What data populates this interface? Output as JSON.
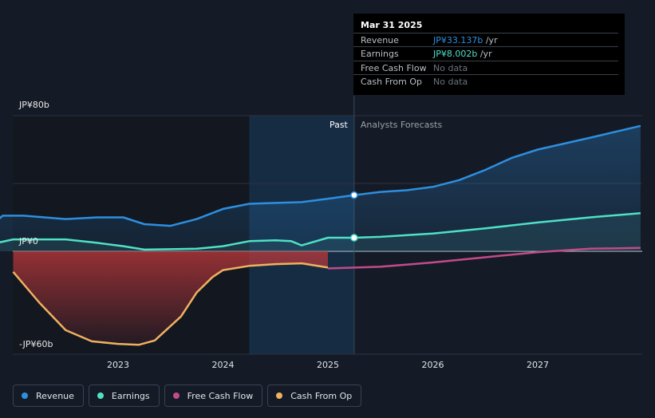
{
  "colors": {
    "revenue": "#2d8fe0",
    "earnings": "#4fe0c5",
    "fcf": "#c24b8a",
    "cfo": "#f0b060",
    "background": "#151b26"
  },
  "tooltip": {
    "date": "Mar 31 2025",
    "rows": [
      {
        "label": "Revenue",
        "value": "JP¥33.137b",
        "unit": " /yr",
        "color": "#2d8fe0"
      },
      {
        "label": "Earnings",
        "value": "JP¥8.002b",
        "unit": " /yr",
        "color": "#4fe0c5"
      },
      {
        "label": "Free Cash Flow",
        "value": "No data",
        "unit": "",
        "color": "#6b7280"
      },
      {
        "label": "Cash From Op",
        "value": "No data",
        "unit": "",
        "color": "#6b7280"
      }
    ]
  },
  "legend": [
    {
      "label": "Revenue",
      "color": "#2d8fe0"
    },
    {
      "label": "Earnings",
      "color": "#4fe0c5"
    },
    {
      "label": "Free Cash Flow",
      "color": "#c24b8a"
    },
    {
      "label": "Cash From Op",
      "color": "#f0b060"
    }
  ],
  "chart_data": {
    "type": "line",
    "past_label": "Past",
    "forecast_label": "Analysts Forecasts",
    "y_ticks": [
      {
        "value": 80,
        "label": "JP¥80b"
      },
      {
        "value": 0,
        "label": "JP¥0"
      },
      {
        "value": -60,
        "label": "-JP¥60b"
      }
    ],
    "x_ticks": [
      {
        "value": 2023,
        "label": "2023"
      },
      {
        "value": 2024,
        "label": "2024"
      },
      {
        "value": 2025,
        "label": "2025"
      },
      {
        "value": 2026,
        "label": "2026"
      },
      {
        "value": 2027,
        "label": "2027"
      }
    ],
    "xlim": [
      2021.75,
      2027.98
    ],
    "ylim": [
      -60,
      80
    ],
    "highlight_start": 2024.25,
    "divider": 2025.25,
    "series": [
      {
        "name": "Revenue",
        "key": "revenue",
        "past": [
          [
            2021.75,
            13
          ],
          [
            2021.9,
            21
          ],
          [
            2022.1,
            21
          ],
          [
            2022.5,
            19
          ],
          [
            2022.8,
            20
          ],
          [
            2023.05,
            20
          ],
          [
            2023.25,
            16
          ],
          [
            2023.5,
            15
          ],
          [
            2023.75,
            19
          ],
          [
            2024.0,
            25
          ],
          [
            2024.25,
            28
          ],
          [
            2024.5,
            28.5
          ],
          [
            2024.75,
            29
          ],
          [
            2025.0,
            31
          ],
          [
            2025.25,
            33.137
          ]
        ],
        "forecast": [
          [
            2025.25,
            33.137
          ],
          [
            2025.5,
            35
          ],
          [
            2025.75,
            36
          ],
          [
            2026.0,
            38
          ],
          [
            2026.25,
            42
          ],
          [
            2026.5,
            48
          ],
          [
            2026.75,
            55
          ],
          [
            2027.0,
            60
          ],
          [
            2027.5,
            67
          ],
          [
            2027.98,
            74
          ]
        ]
      },
      {
        "name": "Earnings",
        "key": "earnings",
        "past": [
          [
            2021.75,
            3
          ],
          [
            2021.85,
            5
          ],
          [
            2022.0,
            7
          ],
          [
            2022.2,
            7
          ],
          [
            2022.5,
            7
          ],
          [
            2022.8,
            5
          ],
          [
            2023.05,
            3
          ],
          [
            2023.25,
            1
          ],
          [
            2023.5,
            1.2
          ],
          [
            2023.75,
            1.5
          ],
          [
            2024.0,
            3
          ],
          [
            2024.25,
            6
          ],
          [
            2024.5,
            6.5
          ],
          [
            2024.65,
            6
          ],
          [
            2024.75,
            3.5
          ],
          [
            2025.0,
            8
          ],
          [
            2025.25,
            8.002
          ]
        ],
        "forecast": [
          [
            2025.25,
            8.002
          ],
          [
            2025.5,
            8.5
          ],
          [
            2026.0,
            10.5
          ],
          [
            2026.5,
            13.5
          ],
          [
            2027.0,
            17
          ],
          [
            2027.5,
            20
          ],
          [
            2027.98,
            22.5
          ]
        ]
      },
      {
        "name": "Free Cash Flow",
        "key": "fcf",
        "past": [],
        "forecast": [
          [
            2025.0,
            -10
          ],
          [
            2025.5,
            -9
          ],
          [
            2026.0,
            -6.5
          ],
          [
            2026.5,
            -3.5
          ],
          [
            2027.0,
            -0.5
          ],
          [
            2027.5,
            1.5
          ],
          [
            2027.98,
            2
          ]
        ]
      },
      {
        "name": "Cash From Op",
        "key": "cfo",
        "past": [
          [
            2022.0,
            -12
          ],
          [
            2022.25,
            -30
          ],
          [
            2022.5,
            -46
          ],
          [
            2022.75,
            -52.5
          ],
          [
            2023.0,
            -54
          ],
          [
            2023.2,
            -54.5
          ],
          [
            2023.35,
            -52
          ],
          [
            2023.6,
            -38
          ],
          [
            2023.75,
            -24
          ],
          [
            2023.9,
            -15
          ],
          [
            2024.0,
            -11
          ],
          [
            2024.25,
            -8.5
          ],
          [
            2024.5,
            -7.5
          ],
          [
            2024.75,
            -7
          ],
          [
            2025.0,
            -9.5
          ]
        ],
        "forecast": []
      }
    ]
  }
}
